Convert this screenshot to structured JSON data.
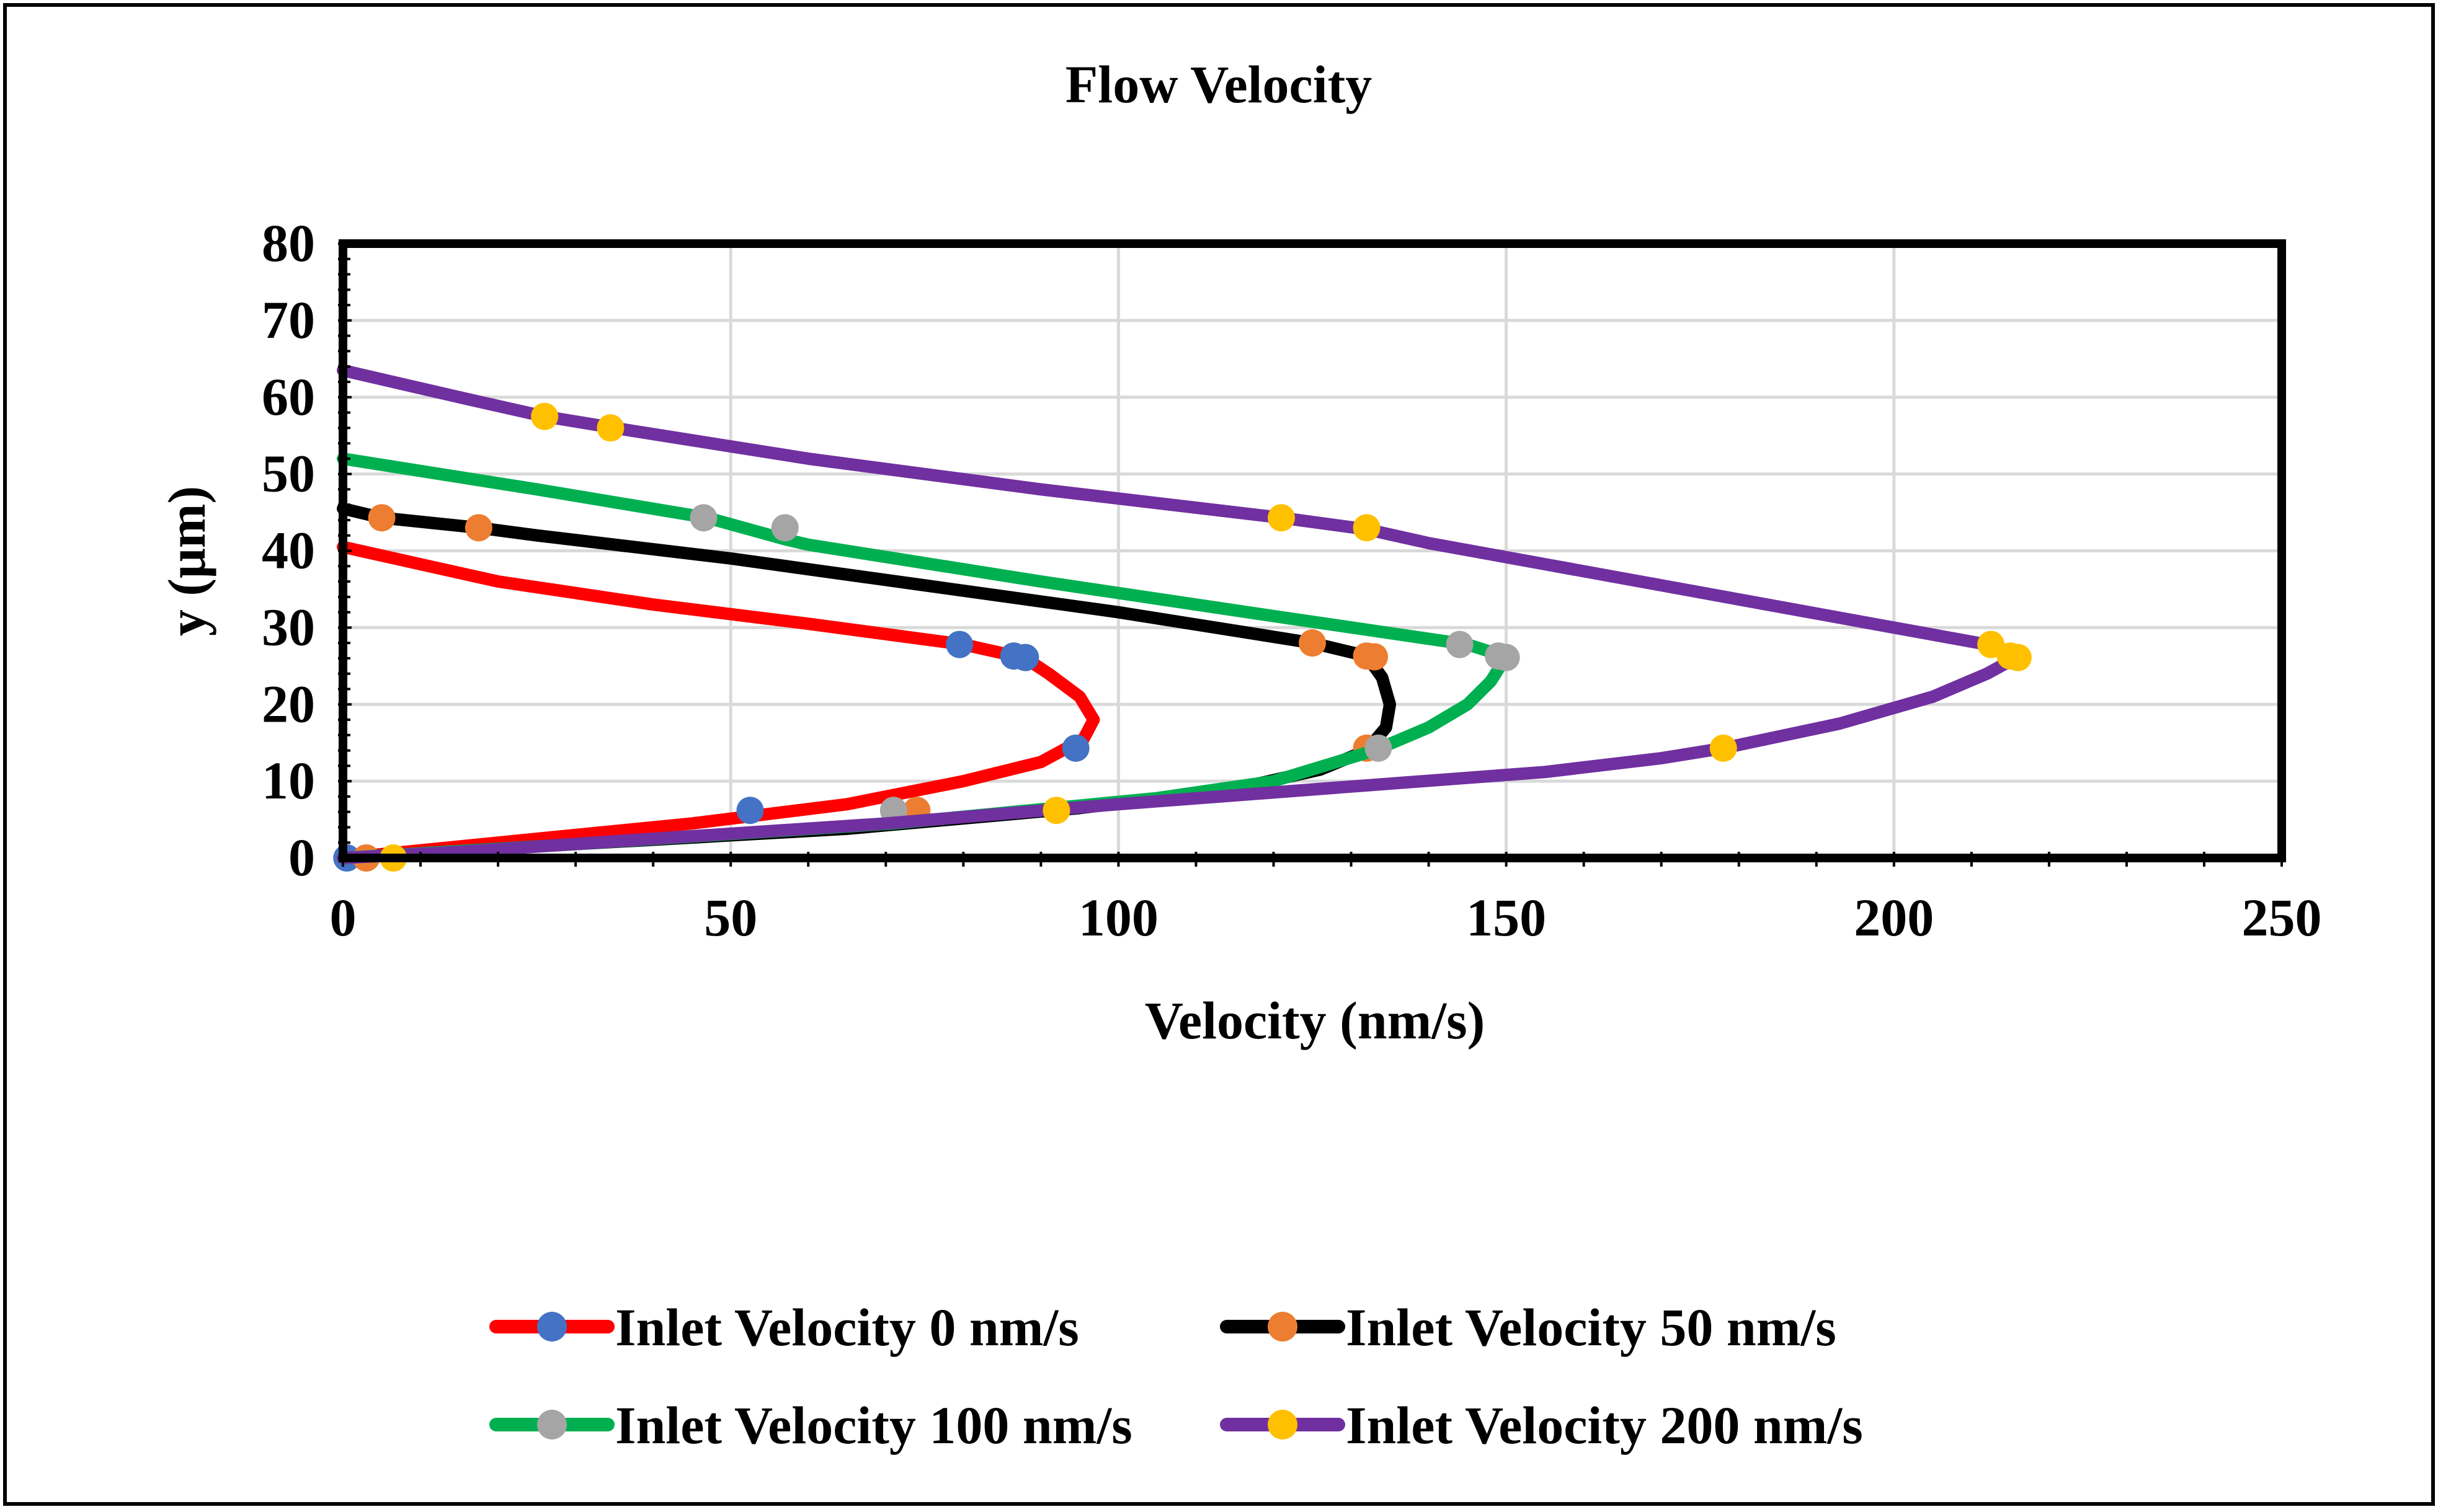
{
  "chart_data": {
    "type": "line",
    "title": "Flow Velocity",
    "xlabel": "Velocity (nm/s)",
    "ylabel": "y (μm)",
    "xlim": [
      0,
      250
    ],
    "ylim": [
      0,
      80
    ],
    "xticks": [
      0,
      50,
      100,
      150,
      200,
      250
    ],
    "yticks": [
      0,
      10,
      20,
      30,
      40,
      50,
      60,
      70,
      80
    ],
    "grid": true,
    "legend_position": "bottom",
    "series": [
      {
        "name": "Inlet Velocity 0 nm/s",
        "line_color": "#FF0000",
        "marker_color": "#4472C4",
        "curve": [
          [
            0,
            0
          ],
          [
            20,
            2
          ],
          [
            45,
            4.5
          ],
          [
            65,
            7
          ],
          [
            80,
            10
          ],
          [
            90,
            12.5
          ],
          [
            95.5,
            15.5
          ],
          [
            96.8,
            18
          ],
          [
            95,
            21
          ],
          [
            91,
            24
          ],
          [
            88,
            26
          ],
          [
            80,
            27.8
          ],
          [
            60,
            30.5
          ],
          [
            40,
            33
          ],
          [
            20,
            36
          ],
          [
            0,
            40.5
          ]
        ],
        "markers": [
          [
            0.5,
            0
          ],
          [
            52.5,
            6.2
          ],
          [
            94.5,
            14.3
          ],
          [
            86.5,
            26.3
          ],
          [
            88,
            26.1
          ],
          [
            79.5,
            27.8
          ]
        ]
      },
      {
        "name": "Inlet Velocity 50 nm/s",
        "line_color": "#000000",
        "marker_color": "#ED7D31",
        "curve": [
          [
            0,
            0
          ],
          [
            30,
            1.8
          ],
          [
            65,
            3.8
          ],
          [
            95,
            6.5
          ],
          [
            115,
            9
          ],
          [
            126,
            11.5
          ],
          [
            132,
            14
          ],
          [
            134.5,
            17
          ],
          [
            135,
            20
          ],
          [
            134,
            23.5
          ],
          [
            132,
            26.3
          ],
          [
            125,
            28
          ],
          [
            100,
            32
          ],
          [
            75,
            35.5
          ],
          [
            50,
            39
          ],
          [
            25,
            42
          ],
          [
            17.5,
            43
          ],
          [
            5,
            44.3
          ],
          [
            0,
            45.5
          ]
        ],
        "markers": [
          [
            3,
            0
          ],
          [
            74,
            6.2
          ],
          [
            132,
            14.3
          ],
          [
            132,
            26.3
          ],
          [
            133,
            26.2
          ],
          [
            125,
            28
          ],
          [
            17.5,
            43
          ],
          [
            5,
            44.3
          ]
        ]
      },
      {
        "name": "Inlet Velocity 100 nm/s",
        "line_color": "#00B050",
        "marker_color": "#A5A5A5",
        "curve": [
          [
            0,
            0
          ],
          [
            30,
            1.8
          ],
          [
            71,
            4.5
          ],
          [
            105,
            7.8
          ],
          [
            120,
            10
          ],
          [
            133,
            14
          ],
          [
            140,
            17
          ],
          [
            145,
            20
          ],
          [
            148,
            23
          ],
          [
            150,
            26.2
          ],
          [
            145,
            27.8
          ],
          [
            120,
            31.5
          ],
          [
            90,
            36
          ],
          [
            60,
            40.8
          ],
          [
            57,
            41.5
          ],
          [
            47,
            44.3
          ],
          [
            25,
            48
          ],
          [
            0,
            52
          ]
        ],
        "markers": [
          [
            71,
            6.2
          ],
          [
            133.5,
            14.3
          ],
          [
            149,
            26.3
          ],
          [
            150,
            26.1
          ],
          [
            144,
            27.8
          ],
          [
            57,
            43
          ],
          [
            46.5,
            44.3
          ]
        ]
      },
      {
        "name": "Inlet Velocity 200 nm/s",
        "line_color": "#7030A0",
        "marker_color": "#FFC000",
        "curve": [
          [
            0,
            0
          ],
          [
            15,
            0.8
          ],
          [
            40,
            2.5
          ],
          [
            70,
            4.5
          ],
          [
            100,
            7
          ],
          [
            130,
            9.3
          ],
          [
            155,
            11.2
          ],
          [
            170,
            13
          ],
          [
            178,
            14.3
          ],
          [
            193,
            17.5
          ],
          [
            205,
            21
          ],
          [
            212,
            24
          ],
          [
            216,
            26.2
          ],
          [
            212,
            27.8
          ],
          [
            200,
            30
          ],
          [
            170,
            35.5
          ],
          [
            140,
            41
          ],
          [
            132,
            42.8
          ],
          [
            121,
            44.3
          ],
          [
            90,
            48
          ],
          [
            60,
            52
          ],
          [
            35,
            56
          ],
          [
            26,
            57.5
          ],
          [
            15,
            60
          ],
          [
            0,
            63.5
          ]
        ],
        "markers": [
          [
            6.5,
            0
          ],
          [
            92,
            6.2
          ],
          [
            178,
            14.3
          ],
          [
            215,
            26.3
          ],
          [
            216,
            26.1
          ],
          [
            212.5,
            27.8
          ],
          [
            132,
            43
          ],
          [
            121,
            44.3
          ],
          [
            34.5,
            56
          ],
          [
            26,
            57.5
          ]
        ]
      }
    ]
  }
}
